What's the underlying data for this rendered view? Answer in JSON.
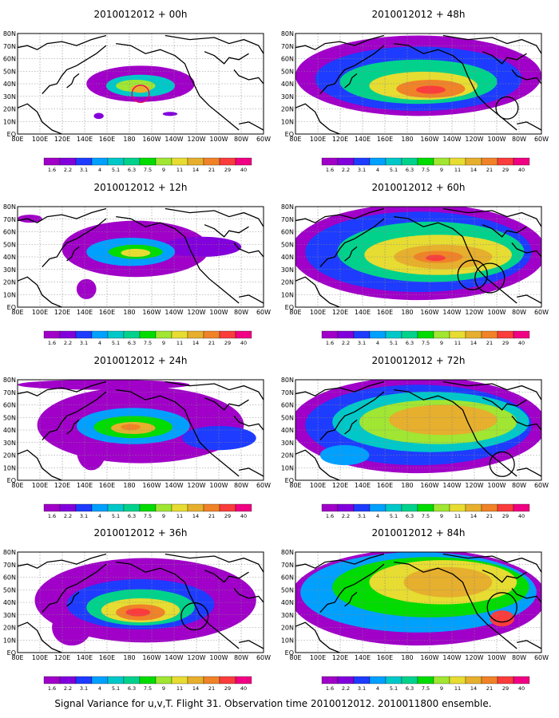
{
  "caption": "Signal Variance for u,v,T. Flight 31. Observation time 2010012012. 2010011800 ensemble.",
  "chart_data": {
    "type": "heatmap",
    "x_ticks": [
      "80E",
      "100E",
      "120E",
      "140E",
      "160E",
      "180",
      "160W",
      "140W",
      "120W",
      "100W",
      "80W",
      "60W"
    ],
    "y_ticks": [
      "EQ",
      "10N",
      "20N",
      "30N",
      "40N",
      "50N",
      "60N",
      "70N",
      "80N"
    ],
    "colorbar": {
      "levels": [
        "1.6",
        "2.2",
        "3.1",
        "4",
        "5.1",
        "6.3",
        "7.5",
        "9",
        "11",
        "14",
        "21",
        "29",
        "40"
      ],
      "colors": [
        "#a000c8",
        "#8200dc",
        "#1e3cff",
        "#00a0ff",
        "#00c8c8",
        "#00d28c",
        "#00dc00",
        "#a0e632",
        "#e6dc32",
        "#e6af2d",
        "#f08228",
        "#fa3c3c",
        "#f00082"
      ]
    },
    "panels": [
      {
        "title": "2010012012 + 00h",
        "x_range": [
          "80E",
          "60W"
        ],
        "y_range": [
          "EQ",
          "80N"
        ],
        "max_level": "21",
        "circles": 1
      },
      {
        "title": "2010012012 + 12h",
        "x_range": [
          "80E",
          "60W"
        ],
        "y_range": [
          "EQ",
          "80N"
        ],
        "max_level": "14",
        "circles": 0
      },
      {
        "title": "2010012012 + 24h",
        "x_range": [
          "80E",
          "60W"
        ],
        "y_range": [
          "EQ",
          "80N"
        ],
        "max_level": "21",
        "circles": 0
      },
      {
        "title": "2010012012 + 36h",
        "x_range": [
          "80E",
          "60W"
        ],
        "y_range": [
          "EQ",
          "80N"
        ],
        "max_level": "21",
        "circles": 1
      },
      {
        "title": "2010012012 + 48h",
        "x_range": [
          "80E",
          "60W"
        ],
        "y_range": [
          "EQ",
          "80N"
        ],
        "max_level": "21",
        "circles": 1
      },
      {
        "title": "2010012012 + 60h",
        "x_range": [
          "80E",
          "60W"
        ],
        "y_range": [
          "EQ",
          "80N"
        ],
        "max_level": "21",
        "circles": 2
      },
      {
        "title": "2010012012 + 72h",
        "x_range": [
          "80E",
          "60W"
        ],
        "y_range": [
          "EQ",
          "80N"
        ],
        "max_level": "14",
        "circles": 1
      },
      {
        "title": "2010012012 + 84h",
        "x_range": [
          "80E",
          "60W"
        ],
        "y_range": [
          "EQ",
          "80N"
        ],
        "max_level": "21",
        "circles": 1
      }
    ]
  }
}
